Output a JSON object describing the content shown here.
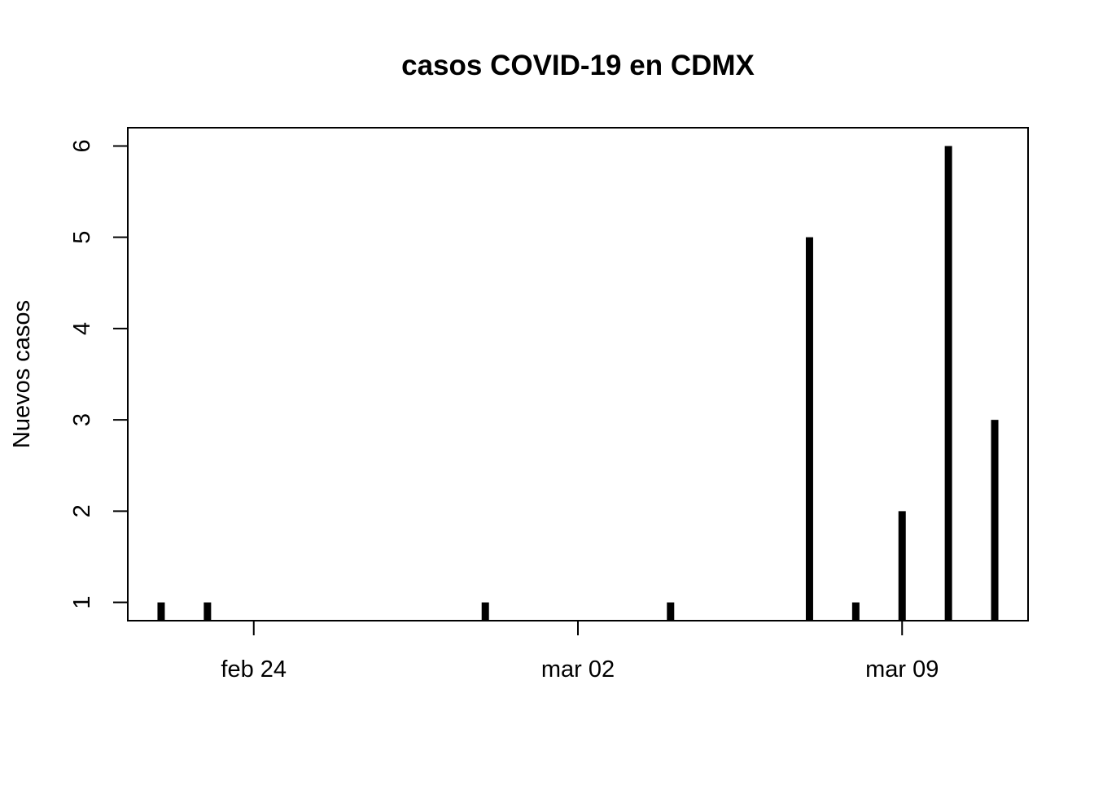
{
  "chart_data": {
    "type": "histogram-lines",
    "title": "casos COVID-19 en CDMX",
    "y_label": "Nuevos casos",
    "x": [
      53,
      54,
      60,
      64,
      67,
      68,
      69,
      70,
      71
    ],
    "values": [
      1,
      1,
      1,
      1,
      5,
      1,
      2,
      6,
      3
    ],
    "color": "#000000",
    "xlim": [
      52.28,
      71.72
    ],
    "xticks": [
      {
        "value": 55,
        "label": "feb 24"
      },
      {
        "value": 62,
        "label": "mar 02"
      },
      {
        "value": 69,
        "label": "mar 09"
      }
    ],
    "ylim": [
      0.8,
      6.2
    ],
    "yticks": [
      1,
      2,
      3,
      4,
      5,
      6
    ]
  }
}
